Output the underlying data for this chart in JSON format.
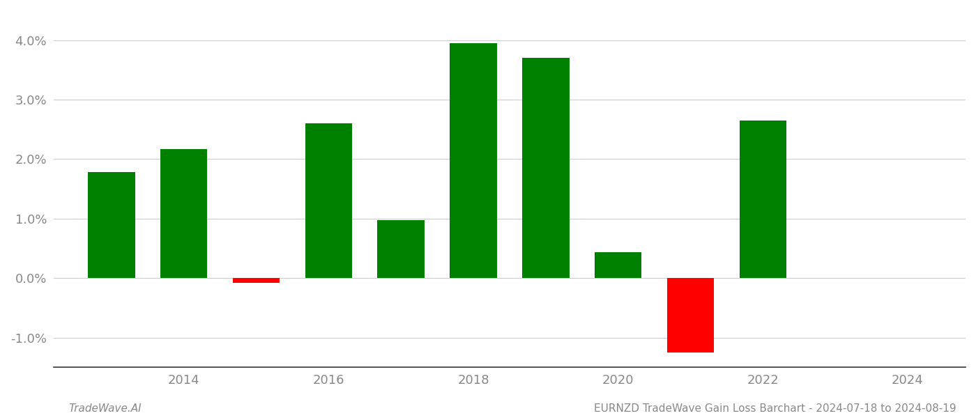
{
  "years": [
    2013,
    2014,
    2015,
    2016,
    2017,
    2018,
    2019,
    2020,
    2021,
    2022,
    2023
  ],
  "values": [
    0.0178,
    0.0217,
    -0.0008,
    0.026,
    0.0097,
    0.0395,
    0.037,
    0.0043,
    -0.0125,
    0.0265,
    0.0
  ],
  "bar_colors": [
    "#008000",
    "#008000",
    "#ff0000",
    "#008000",
    "#008000",
    "#008000",
    "#008000",
    "#008000",
    "#ff0000",
    "#008000",
    "#008000"
  ],
  "footer_left": "TradeWave.AI",
  "footer_right": "EURNZD TradeWave Gain Loss Barchart - 2024-07-18 to 2024-08-19",
  "ylim": [
    -0.015,
    0.045
  ],
  "yticks": [
    -0.01,
    0.0,
    0.01,
    0.02,
    0.03,
    0.04
  ],
  "xtick_positions": [
    2014,
    2016,
    2018,
    2020,
    2022,
    2024
  ],
  "xtick_labels": [
    "2014",
    "2016",
    "2018",
    "2020",
    "2022",
    "2024"
  ],
  "xlim": [
    2012.2,
    2024.8
  ],
  "background_color": "#ffffff",
  "grid_color": "#cccccc",
  "bar_width": 0.65,
  "tick_label_color": "#888888",
  "bottom_spine_color": "#333333"
}
